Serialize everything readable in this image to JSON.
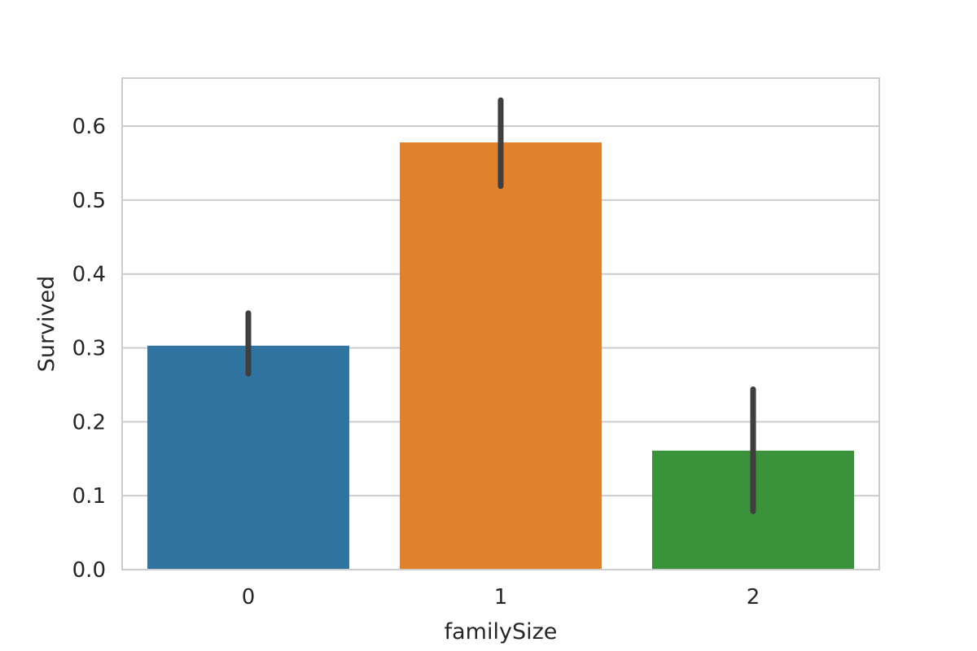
{
  "chart_data": {
    "type": "bar",
    "title": "",
    "xlabel": "familySize",
    "ylabel": "Survived",
    "categories": [
      "0",
      "1",
      "2"
    ],
    "values": [
      0.303,
      0.578,
      0.161
    ],
    "error_bars": [
      [
        0.265,
        0.347
      ],
      [
        0.519,
        0.635
      ],
      [
        0.079,
        0.244
      ]
    ],
    "colors": [
      "#3274a1",
      "#e1812c",
      "#3a923a"
    ],
    "errorbar_color": "#3f3f3f",
    "ylim": [
      0,
      0.665
    ],
    "yticks": [
      0.0,
      0.1,
      0.2,
      0.3,
      0.4,
      0.5,
      0.6
    ],
    "ytick_labels": [
      "0.0",
      "0.1",
      "0.2",
      "0.3",
      "0.4",
      "0.5",
      "0.6"
    ],
    "grid": "horizontal",
    "grid_color": "#cccccc",
    "frame_color": "#cccccc",
    "legend": "none"
  }
}
